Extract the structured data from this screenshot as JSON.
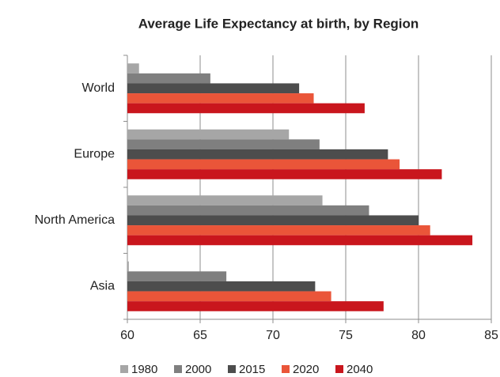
{
  "chart_data": {
    "type": "bar",
    "orientation": "horizontal",
    "title": "Average Life Expectancy at birth, by Region",
    "categories": [
      "World",
      "Europe",
      "North America",
      "Asia"
    ],
    "series": [
      {
        "name": "1980",
        "color": "#a6a6a6",
        "values": [
          60.8,
          71.1,
          73.4,
          60.1
        ]
      },
      {
        "name": "2000",
        "color": "#7f7f7f",
        "values": [
          65.7,
          73.2,
          76.6,
          66.8
        ]
      },
      {
        "name": "2015",
        "color": "#4d4d4d",
        "values": [
          71.8,
          77.9,
          80.0,
          72.9
        ]
      },
      {
        "name": "2020",
        "color": "#ea5539",
        "values": [
          72.8,
          78.7,
          80.8,
          74.0
        ]
      },
      {
        "name": "2040",
        "color": "#c9161d",
        "values": [
          76.3,
          81.6,
          83.7,
          77.6
        ]
      }
    ],
    "xlim": [
      60,
      85
    ],
    "xticks": [
      60,
      65,
      70,
      75,
      80,
      85
    ],
    "grid": true,
    "legend": "bottom"
  }
}
